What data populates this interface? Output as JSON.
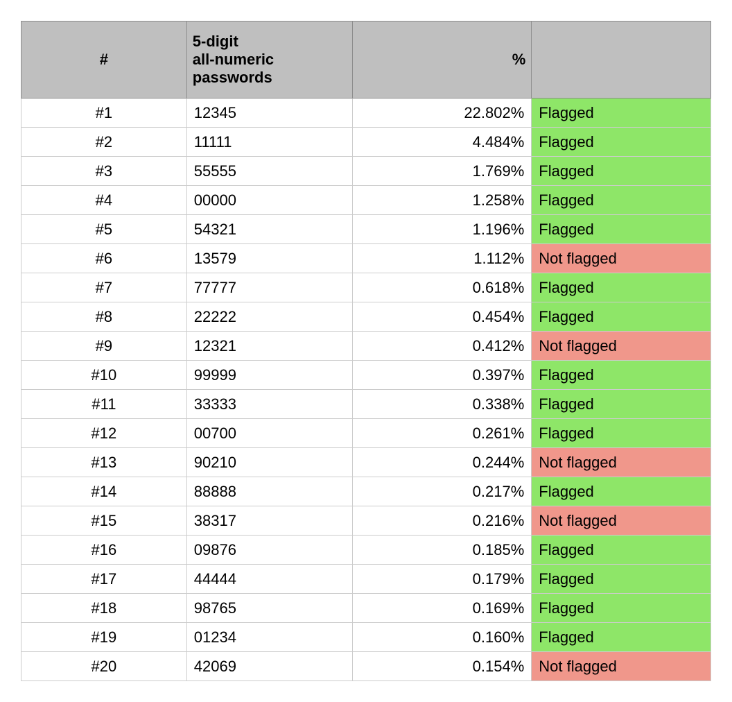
{
  "table": {
    "type": "table",
    "background_color": "#ffffff",
    "header_bg": "#bfbfbf",
    "header_border": "#8c8c8c",
    "cell_border": "#cccccc",
    "font_family": "system-ui",
    "header_fontsize": 22,
    "cell_fontsize": 22,
    "status_colors": {
      "Flagged": "#8ee668",
      "Not flagged": "#f0978b"
    },
    "columns": [
      {
        "key": "rank",
        "label": "#",
        "align": "center",
        "width_pct": 24
      },
      {
        "key": "password",
        "label": "5-digit\nall-numeric\npasswords",
        "align": "left",
        "width_pct": 24
      },
      {
        "key": "pct",
        "label": "%",
        "align": "right",
        "width_pct": 26
      },
      {
        "key": "status",
        "label": "",
        "align": "left",
        "width_pct": 26
      }
    ],
    "rows": [
      {
        "rank": "#1",
        "password": "12345",
        "pct": "22.802%",
        "status": "Flagged"
      },
      {
        "rank": "#2",
        "password": "11111",
        "pct": "4.484%",
        "status": "Flagged"
      },
      {
        "rank": "#3",
        "password": "55555",
        "pct": "1.769%",
        "status": "Flagged"
      },
      {
        "rank": "#4",
        "password": "00000",
        "pct": "1.258%",
        "status": "Flagged"
      },
      {
        "rank": "#5",
        "password": "54321",
        "pct": "1.196%",
        "status": "Flagged"
      },
      {
        "rank": "#6",
        "password": "13579",
        "pct": "1.112%",
        "status": "Not flagged"
      },
      {
        "rank": "#7",
        "password": "77777",
        "pct": "0.618%",
        "status": "Flagged"
      },
      {
        "rank": "#8",
        "password": "22222",
        "pct": "0.454%",
        "status": "Flagged"
      },
      {
        "rank": "#9",
        "password": "12321",
        "pct": "0.412%",
        "status": "Not flagged"
      },
      {
        "rank": "#10",
        "password": "99999",
        "pct": "0.397%",
        "status": "Flagged"
      },
      {
        "rank": "#11",
        "password": "33333",
        "pct": "0.338%",
        "status": "Flagged"
      },
      {
        "rank": "#12",
        "password": "00700",
        "pct": "0.261%",
        "status": "Flagged"
      },
      {
        "rank": "#13",
        "password": "90210",
        "pct": "0.244%",
        "status": "Not flagged"
      },
      {
        "rank": "#14",
        "password": "88888",
        "pct": "0.217%",
        "status": "Flagged"
      },
      {
        "rank": "#15",
        "password": "38317",
        "pct": "0.216%",
        "status": "Not flagged"
      },
      {
        "rank": "#16",
        "password": "09876",
        "pct": "0.185%",
        "status": "Flagged"
      },
      {
        "rank": "#17",
        "password": "44444",
        "pct": "0.179%",
        "status": "Flagged"
      },
      {
        "rank": "#18",
        "password": "98765",
        "pct": "0.169%",
        "status": "Flagged"
      },
      {
        "rank": "#19",
        "password": "01234",
        "pct": "0.160%",
        "status": "Flagged"
      },
      {
        "rank": "#20",
        "password": "42069",
        "pct": "0.154%",
        "status": "Not flagged"
      }
    ]
  }
}
